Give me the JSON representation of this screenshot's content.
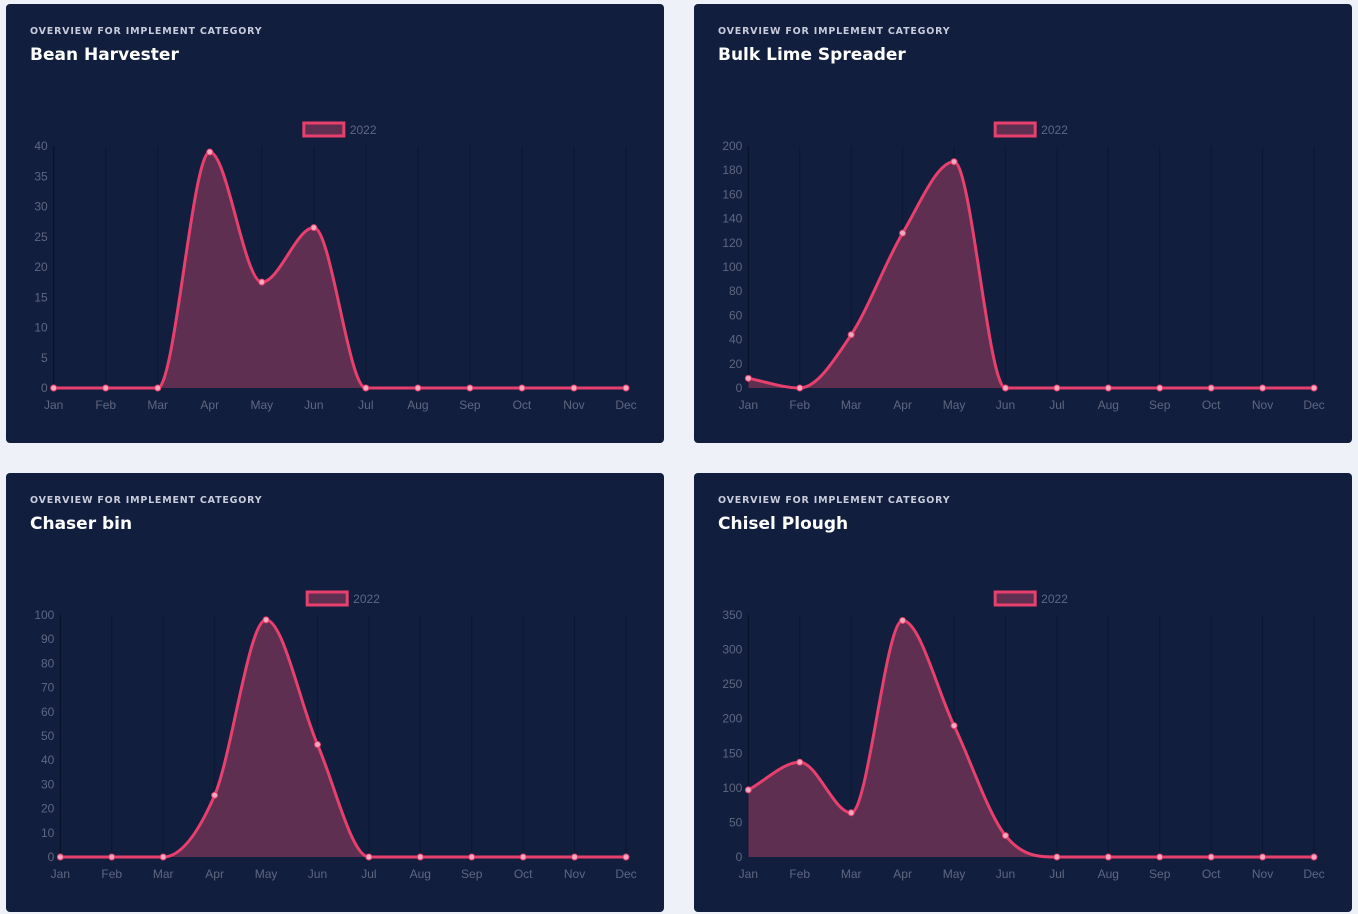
{
  "colors": {
    "card_bg": "#121e3e",
    "page_bg": "#eef1f8",
    "line": "#e8406e",
    "fill": "#5e2f50",
    "point_fill": "#f2a9c0",
    "tick_text": "#5f6680",
    "grid": "#0d1733"
  },
  "chart_data": [
    {
      "type": "area",
      "eyebrow": "OVERVIEW FOR IMPLEMENT CATEGORY",
      "title": "Bean Harvester",
      "categories": [
        "Jan",
        "Feb",
        "Mar",
        "Apr",
        "May",
        "Jun",
        "Jul",
        "Aug",
        "Sep",
        "Oct",
        "Nov",
        "Dec"
      ],
      "series": [
        {
          "name": "2022",
          "values": [
            0,
            0,
            0,
            39,
            17.5,
            26.5,
            0,
            0,
            0,
            0,
            0,
            0
          ]
        }
      ],
      "yticks": [
        0,
        5,
        10,
        15,
        20,
        25,
        30,
        35,
        40
      ],
      "ylim": [
        0,
        40
      ],
      "legend": "top-center",
      "grid": "vertical"
    },
    {
      "type": "area",
      "eyebrow": "OVERVIEW FOR IMPLEMENT CATEGORY",
      "title": "Bulk Lime Spreader",
      "categories": [
        "Jan",
        "Feb",
        "Mar",
        "Apr",
        "May",
        "Jun",
        "Jul",
        "Aug",
        "Sep",
        "Oct",
        "Nov",
        "Dec"
      ],
      "series": [
        {
          "name": "2022",
          "values": [
            8,
            0,
            44,
            128,
            187,
            0,
            0,
            0,
            0,
            0,
            0,
            0
          ]
        }
      ],
      "yticks": [
        0,
        20,
        40,
        60,
        80,
        100,
        120,
        140,
        160,
        180,
        200
      ],
      "ylim": [
        0,
        200
      ],
      "legend": "top-center",
      "grid": "vertical"
    },
    {
      "type": "area",
      "eyebrow": "OVERVIEW FOR IMPLEMENT CATEGORY",
      "title": "Chaser bin",
      "categories": [
        "Jan",
        "Feb",
        "Mar",
        "Apr",
        "May",
        "Jun",
        "Jul",
        "Aug",
        "Sep",
        "Oct",
        "Nov",
        "Dec"
      ],
      "series": [
        {
          "name": "2022",
          "values": [
            0,
            0,
            0,
            25.5,
            98,
            46.5,
            0,
            0,
            0,
            0,
            0,
            0
          ]
        }
      ],
      "yticks": [
        0,
        10,
        20,
        30,
        40,
        50,
        60,
        70,
        80,
        90,
        100
      ],
      "ylim": [
        0,
        100
      ],
      "legend": "top-center",
      "grid": "vertical"
    },
    {
      "type": "area",
      "eyebrow": "OVERVIEW FOR IMPLEMENT CATEGORY",
      "title": "Chisel Plough",
      "categories": [
        "Jan",
        "Feb",
        "Mar",
        "Apr",
        "May",
        "Jun",
        "Jul",
        "Aug",
        "Sep",
        "Oct",
        "Nov",
        "Dec"
      ],
      "series": [
        {
          "name": "2022",
          "values": [
            97,
            137,
            64,
            342,
            190,
            31,
            0,
            0,
            0,
            0,
            0,
            0
          ]
        }
      ],
      "yticks": [
        0,
        50,
        100,
        150,
        200,
        250,
        300,
        350
      ],
      "ylim": [
        0,
        350
      ],
      "legend": "top-center",
      "grid": "vertical"
    }
  ]
}
